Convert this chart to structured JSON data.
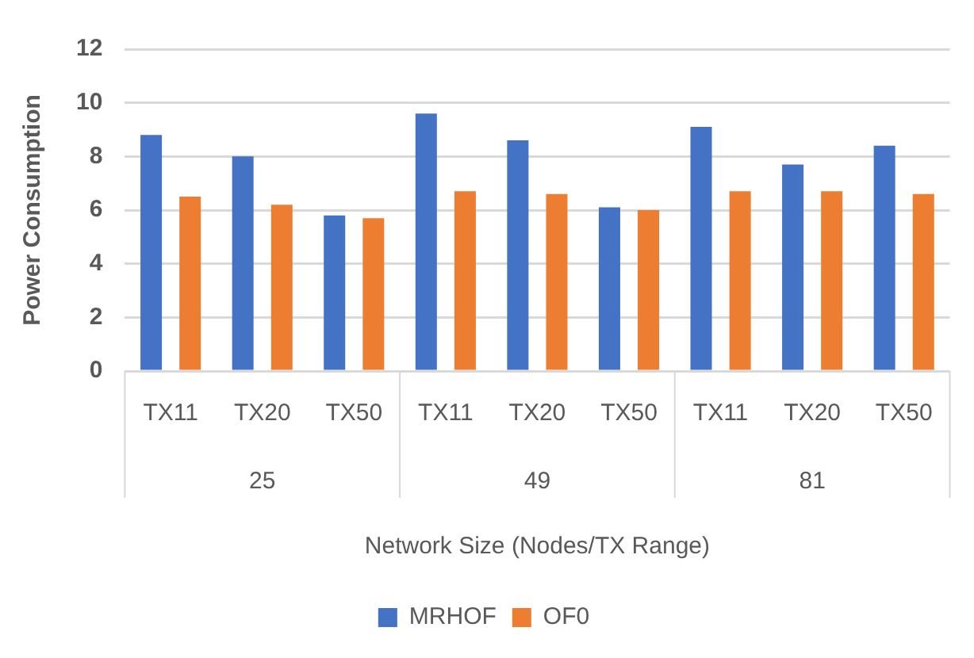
{
  "chart_data": {
    "type": "bar",
    "xlabel": "Network Size (Nodes/TX Range)",
    "ylabel": "Power Consumption",
    "categories": [
      "TX11",
      "TX20",
      "TX50",
      "TX11",
      "TX20",
      "TX50",
      "TX11",
      "TX20",
      "TX50"
    ],
    "series": [
      {
        "name": "MRHOF",
        "color": "#4472c4",
        "values": [
          8.8,
          8.0,
          5.8,
          9.6,
          8.6,
          6.1,
          9.1,
          7.7,
          8.4
        ]
      },
      {
        "name": "OF0",
        "color": "#ed7d31",
        "values": [
          6.5,
          6.2,
          5.7,
          6.7,
          6.6,
          6.0,
          6.7,
          6.7,
          6.6
        ]
      }
    ],
    "annotations": [
      "25",
      "49",
      "81"
    ],
    "ylim": [
      0,
      12
    ],
    "yticks": [
      0,
      2,
      4,
      6,
      8,
      10,
      12
    ],
    "grid": "y",
    "legend": "bottom"
  }
}
